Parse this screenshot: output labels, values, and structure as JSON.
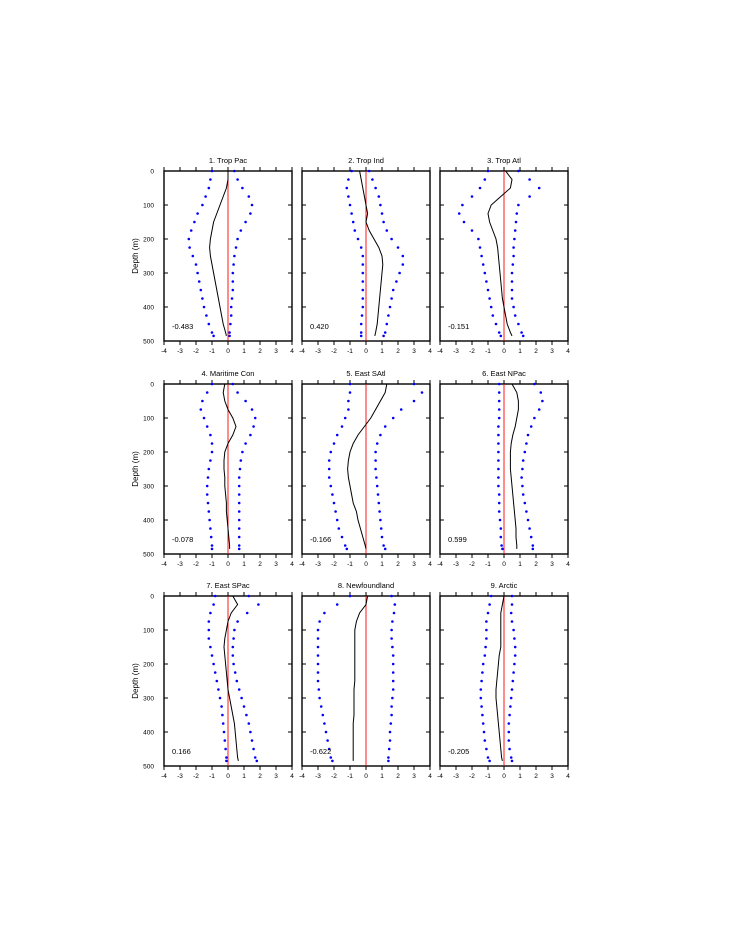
{
  "figure": {
    "ylabel": "Depth (m)",
    "colors": {
      "mean_line": "#000000",
      "zero_line": "#ff0000",
      "bounds": "#0000ff"
    }
  },
  "chart_data": [
    {
      "type": "line",
      "panel": 1,
      "title": "1. Trop Pac",
      "value_label": "-0.483",
      "xlim": [
        -4,
        4
      ],
      "ylim": [
        500,
        0
      ],
      "xticks": [
        -4,
        -3,
        -2,
        -1,
        0,
        1,
        2,
        3,
        4
      ],
      "yticks": [
        0,
        100,
        200,
        300,
        400,
        500
      ],
      "depth": [
        0,
        25,
        50,
        75,
        100,
        125,
        150,
        175,
        200,
        225,
        250,
        275,
        300,
        325,
        350,
        375,
        400,
        425,
        450,
        475,
        485
      ],
      "mean": [
        0,
        0,
        -0.1,
        -0.3,
        -0.5,
        -0.7,
        -0.9,
        -1.0,
        -1.1,
        -1.15,
        -1.1,
        -1.0,
        -0.9,
        -0.8,
        -0.7,
        -0.6,
        -0.5,
        -0.4,
        -0.3,
        -0.15,
        -0.1
      ],
      "lower": [
        -1,
        -1.1,
        -1.2,
        -1.4,
        -1.6,
        -1.9,
        -2.1,
        -2.3,
        -2.45,
        -2.4,
        -2.2,
        -2.0,
        -1.9,
        -1.8,
        -1.7,
        -1.6,
        -1.5,
        -1.35,
        -1.2,
        -1.0,
        -0.9
      ],
      "upper": [
        0.4,
        0.6,
        0.9,
        1.3,
        1.5,
        1.4,
        1.1,
        0.8,
        0.6,
        0.5,
        0.4,
        0.35,
        0.3,
        0.3,
        0.3,
        0.25,
        0.2,
        0.2,
        0.15,
        0.1,
        0.1
      ]
    },
    {
      "type": "line",
      "panel": 2,
      "title": "2. Trop Ind",
      "value_label": "0.420",
      "xlim": [
        -4,
        4
      ],
      "ylim": [
        500,
        0
      ],
      "xticks": [
        -4,
        -3,
        -2,
        -1,
        0,
        1,
        2,
        3,
        4
      ],
      "yticks": [
        0,
        100,
        200,
        300,
        400,
        500
      ],
      "depth": [
        0,
        25,
        50,
        75,
        100,
        125,
        150,
        175,
        200,
        225,
        250,
        275,
        300,
        325,
        350,
        375,
        400,
        425,
        450,
        475,
        485
      ],
      "mean": [
        -0.4,
        -0.3,
        -0.2,
        -0.1,
        0,
        0.1,
        0,
        0.2,
        0.5,
        0.8,
        1.0,
        1.05,
        1.0,
        0.95,
        0.9,
        0.85,
        0.8,
        0.75,
        0.7,
        0.6,
        0.55
      ],
      "lower": [
        -0.9,
        -1.1,
        -1.2,
        -1.1,
        -1.0,
        -0.9,
        -0.8,
        -0.7,
        -0.5,
        -0.3,
        -0.2,
        -0.2,
        -0.2,
        -0.2,
        -0.2,
        -0.2,
        -0.2,
        -0.25,
        -0.3,
        -0.3,
        -0.3
      ],
      "upper": [
        0.2,
        0.4,
        0.6,
        0.8,
        0.9,
        1.0,
        1.1,
        1.3,
        1.6,
        2.0,
        2.3,
        2.3,
        2.1,
        1.9,
        1.7,
        1.6,
        1.5,
        1.4,
        1.3,
        1.2,
        1.1
      ]
    },
    {
      "type": "line",
      "panel": 3,
      "title": "3. Trop Atl",
      "value_label": "-0.151",
      "xlim": [
        -4,
        4
      ],
      "ylim": [
        500,
        0
      ],
      "xticks": [
        -4,
        -3,
        -2,
        -1,
        0,
        1,
        2,
        3,
        4
      ],
      "yticks": [
        0,
        100,
        200,
        300,
        400,
        500
      ],
      "depth": [
        0,
        25,
        50,
        75,
        100,
        125,
        150,
        175,
        200,
        225,
        250,
        275,
        300,
        325,
        350,
        375,
        400,
        425,
        450,
        475,
        485
      ],
      "mean": [
        0.1,
        0.5,
        0.4,
        -0.2,
        -0.8,
        -1.0,
        -0.9,
        -0.7,
        -0.5,
        -0.4,
        -0.35,
        -0.3,
        -0.25,
        -0.2,
        -0.15,
        -0.1,
        0,
        0.1,
        0.2,
        0.4,
        0.5
      ],
      "lower": [
        -1.0,
        -1.2,
        -1.5,
        -2.0,
        -2.6,
        -2.8,
        -2.5,
        -2.0,
        -1.6,
        -1.5,
        -1.4,
        -1.3,
        -1.2,
        -1.1,
        -1.0,
        -0.9,
        -0.8,
        -0.7,
        -0.5,
        -0.3,
        -0.2
      ],
      "upper": [
        0.9,
        1.6,
        2.2,
        1.6,
        0.9,
        0.8,
        0.75,
        0.7,
        0.65,
        0.6,
        0.6,
        0.55,
        0.5,
        0.5,
        0.5,
        0.5,
        0.6,
        0.7,
        0.9,
        1.1,
        1.2
      ]
    },
    {
      "type": "line",
      "panel": 4,
      "title": "4. Maritime Con",
      "value_label": "-0.078",
      "xlim": [
        -4,
        4
      ],
      "ylim": [
        500,
        0
      ],
      "xticks": [
        -4,
        -3,
        -2,
        -1,
        0,
        1,
        2,
        3,
        4
      ],
      "yticks": [
        0,
        100,
        200,
        300,
        400,
        500
      ],
      "depth": [
        0,
        25,
        50,
        75,
        100,
        125,
        150,
        175,
        200,
        225,
        250,
        275,
        300,
        325,
        350,
        375,
        400,
        425,
        450,
        475,
        485
      ],
      "mean": [
        -0.2,
        -0.3,
        -0.2,
        0,
        0.3,
        0.5,
        0.3,
        0,
        -0.2,
        -0.25,
        -0.25,
        -0.2,
        -0.2,
        -0.15,
        -0.1,
        -0.1,
        -0.05,
        0,
        0.05,
        0.1,
        0.1
      ],
      "lower": [
        -1.0,
        -1.3,
        -1.6,
        -1.7,
        -1.5,
        -1.3,
        -1.1,
        -1.0,
        -1.0,
        -1.1,
        -1.2,
        -1.25,
        -1.3,
        -1.3,
        -1.25,
        -1.2,
        -1.15,
        -1.1,
        -1.05,
        -1.0,
        -1.0
      ],
      "upper": [
        0.3,
        0.6,
        1.1,
        1.5,
        1.7,
        1.6,
        1.4,
        1.1,
        0.9,
        0.8,
        0.75,
        0.7,
        0.7,
        0.7,
        0.7,
        0.7,
        0.7,
        0.7,
        0.7,
        0.7,
        0.7
      ]
    },
    {
      "type": "line",
      "panel": 5,
      "title": "5. East SAtl",
      "value_label": "-0.166",
      "xlim": [
        -4,
        4
      ],
      "ylim": [
        500,
        0
      ],
      "xticks": [
        -4,
        -3,
        -2,
        -1,
        0,
        1,
        2,
        3,
        4
      ],
      "yticks": [
        0,
        100,
        200,
        300,
        400,
        500
      ],
      "depth": [
        0,
        25,
        50,
        75,
        100,
        125,
        150,
        175,
        200,
        225,
        250,
        275,
        300,
        325,
        350,
        375,
        400,
        425,
        450,
        475,
        485
      ],
      "mean": [
        1.3,
        1.2,
        0.9,
        0.6,
        0.3,
        -0.1,
        -0.5,
        -0.8,
        -1.0,
        -1.1,
        -1.15,
        -1.1,
        -1.0,
        -0.9,
        -0.8,
        -0.6,
        -0.5,
        -0.35,
        -0.2,
        -0.05,
        0
      ],
      "lower": [
        -1.0,
        -1.0,
        -1.1,
        -1.1,
        -1.3,
        -1.5,
        -1.8,
        -2.0,
        -2.2,
        -2.3,
        -2.3,
        -2.3,
        -2.2,
        -2.1,
        -2.0,
        -1.9,
        -1.8,
        -1.7,
        -1.5,
        -1.3,
        -1.2
      ],
      "upper": [
        3.0,
        3.5,
        3.0,
        2.2,
        1.7,
        1.2,
        0.9,
        0.7,
        0.6,
        0.6,
        0.6,
        0.65,
        0.7,
        0.75,
        0.8,
        0.85,
        0.9,
        0.95,
        1.0,
        1.1,
        1.2
      ]
    },
    {
      "type": "line",
      "panel": 6,
      "title": "6. East NPac",
      "value_label": "0.599",
      "xlim": [
        -4,
        4
      ],
      "ylim": [
        500,
        0
      ],
      "xticks": [
        -4,
        -3,
        -2,
        -1,
        0,
        1,
        2,
        3,
        4
      ],
      "yticks": [
        0,
        100,
        200,
        300,
        400,
        500
      ],
      "depth": [
        0,
        25,
        50,
        75,
        100,
        125,
        150,
        175,
        200,
        225,
        250,
        275,
        300,
        325,
        350,
        375,
        400,
        425,
        450,
        475,
        485
      ],
      "mean": [
        0.5,
        0.8,
        0.9,
        0.9,
        0.8,
        0.7,
        0.55,
        0.45,
        0.4,
        0.4,
        0.4,
        0.45,
        0.5,
        0.55,
        0.6,
        0.65,
        0.7,
        0.75,
        0.75,
        0.8,
        0.8
      ],
      "lower": [
        -0.3,
        -0.3,
        -0.3,
        -0.3,
        -0.3,
        -0.35,
        -0.35,
        -0.35,
        -0.35,
        -0.35,
        -0.35,
        -0.35,
        -0.35,
        -0.3,
        -0.3,
        -0.3,
        -0.25,
        -0.2,
        -0.2,
        -0.15,
        -0.1
      ],
      "upper": [
        1.9,
        2.3,
        2.4,
        2.2,
        1.9,
        1.7,
        1.5,
        1.4,
        1.3,
        1.2,
        1.15,
        1.1,
        1.15,
        1.2,
        1.3,
        1.4,
        1.5,
        1.6,
        1.7,
        1.8,
        1.8
      ]
    },
    {
      "type": "line",
      "panel": 7,
      "title": "7. East SPac",
      "value_label": "0.166",
      "xlim": [
        -4,
        4
      ],
      "ylim": [
        500,
        0
      ],
      "xticks": [
        -4,
        -3,
        -2,
        -1,
        0,
        1,
        2,
        3,
        4
      ],
      "yticks": [
        0,
        100,
        200,
        300,
        400,
        500
      ],
      "depth": [
        0,
        25,
        50,
        75,
        100,
        125,
        150,
        175,
        200,
        225,
        250,
        275,
        300,
        325,
        350,
        375,
        400,
        425,
        450,
        475,
        485
      ],
      "mean": [
        0.3,
        0.6,
        0.2,
        0,
        -0.1,
        -0.2,
        -0.25,
        -0.2,
        -0.15,
        -0.1,
        -0.05,
        0,
        0.1,
        0.2,
        0.3,
        0.4,
        0.45,
        0.5,
        0.55,
        0.6,
        0.65
      ],
      "lower": [
        -0.8,
        -0.9,
        -1.1,
        -1.2,
        -1.2,
        -1.2,
        -1.1,
        -1.0,
        -0.9,
        -0.8,
        -0.7,
        -0.6,
        -0.5,
        -0.4,
        -0.35,
        -0.3,
        -0.25,
        -0.2,
        -0.15,
        -0.1,
        -0.1
      ],
      "upper": [
        1.3,
        1.9,
        1.2,
        0.6,
        0.4,
        0.35,
        0.3,
        0.3,
        0.35,
        0.45,
        0.55,
        0.7,
        0.85,
        1.0,
        1.15,
        1.3,
        1.4,
        1.5,
        1.6,
        1.7,
        1.8
      ]
    },
    {
      "type": "line",
      "panel": 8,
      "title": "8. Newfoundland",
      "value_label": "-0.622",
      "xlim": [
        -4,
        4
      ],
      "ylim": [
        500,
        0
      ],
      "xticks": [
        -4,
        -3,
        -2,
        -1,
        0,
        1,
        2,
        3,
        4
      ],
      "yticks": [
        0,
        100,
        200,
        300,
        400,
        500
      ],
      "depth": [
        0,
        25,
        50,
        75,
        100,
        125,
        150,
        175,
        200,
        225,
        250,
        275,
        300,
        325,
        350,
        375,
        400,
        425,
        450,
        475,
        485
      ],
      "mean": [
        0.1,
        0,
        -0.4,
        -0.6,
        -0.7,
        -0.7,
        -0.7,
        -0.7,
        -0.7,
        -0.7,
        -0.7,
        -0.75,
        -0.75,
        -0.75,
        -0.75,
        -0.8,
        -0.8,
        -0.8,
        -0.8,
        -0.8,
        -0.8
      ],
      "lower": [
        -1.0,
        -1.8,
        -2.6,
        -2.9,
        -3.0,
        -3.0,
        -3.0,
        -3.0,
        -3.0,
        -3.0,
        -3.0,
        -2.95,
        -2.9,
        -2.8,
        -2.7,
        -2.6,
        -2.5,
        -2.4,
        -2.3,
        -2.2,
        -2.1
      ],
      "upper": [
        1.6,
        1.8,
        1.75,
        1.65,
        1.6,
        1.6,
        1.65,
        1.7,
        1.7,
        1.7,
        1.7,
        1.7,
        1.65,
        1.6,
        1.6,
        1.55,
        1.5,
        1.5,
        1.45,
        1.4,
        1.4
      ]
    },
    {
      "type": "line",
      "panel": 9,
      "title": "9. Arctic",
      "value_label": "-0.205",
      "xlim": [
        -4,
        4
      ],
      "ylim": [
        500,
        0
      ],
      "xticks": [
        -4,
        -3,
        -2,
        -1,
        0,
        1,
        2,
        3,
        4
      ],
      "yticks": [
        0,
        100,
        200,
        300,
        400,
        500
      ],
      "depth": [
        0,
        25,
        50,
        75,
        100,
        125,
        150,
        175,
        200,
        225,
        250,
        275,
        300,
        325,
        350,
        375,
        400,
        425,
        450,
        475,
        485
      ],
      "mean": [
        0,
        -0.1,
        -0.2,
        -0.2,
        -0.2,
        -0.2,
        -0.2,
        -0.3,
        -0.35,
        -0.4,
        -0.45,
        -0.5,
        -0.5,
        -0.45,
        -0.4,
        -0.35,
        -0.3,
        -0.25,
        -0.2,
        -0.15,
        -0.1
      ],
      "lower": [
        -0.8,
        -0.9,
        -1.0,
        -1.1,
        -1.1,
        -1.1,
        -1.15,
        -1.2,
        -1.3,
        -1.35,
        -1.4,
        -1.45,
        -1.45,
        -1.4,
        -1.35,
        -1.3,
        -1.25,
        -1.2,
        -1.1,
        -1.0,
        -0.9
      ],
      "upper": [
        0.5,
        0.5,
        0.45,
        0.5,
        0.6,
        0.65,
        0.7,
        0.7,
        0.65,
        0.6,
        0.55,
        0.5,
        0.45,
        0.4,
        0.35,
        0.3,
        0.3,
        0.3,
        0.35,
        0.45,
        0.5
      ]
    }
  ]
}
